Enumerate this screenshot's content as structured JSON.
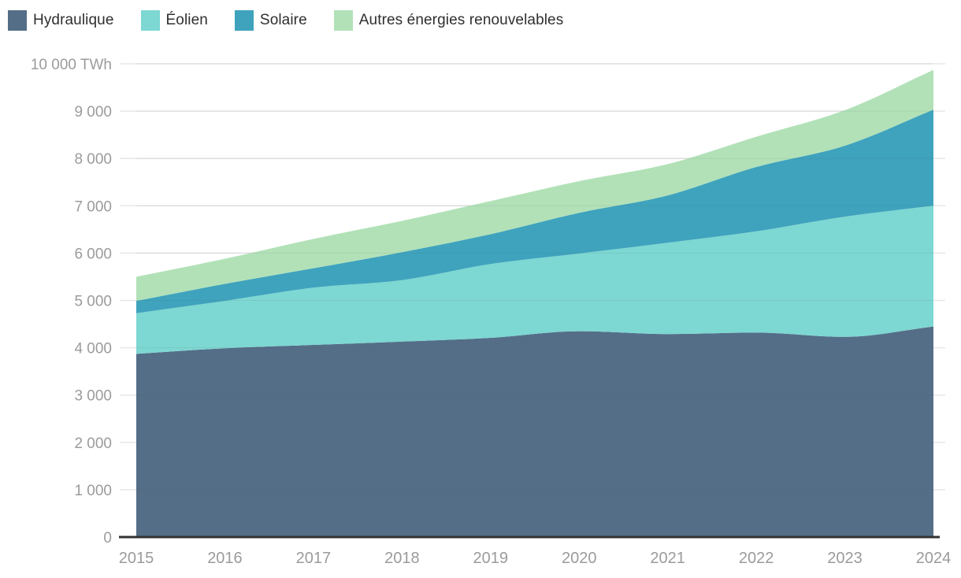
{
  "chart_data": {
    "type": "area",
    "stacked": true,
    "title": "",
    "unit": "TWh",
    "x": [
      2015,
      2016,
      2017,
      2018,
      2019,
      2020,
      2021,
      2022,
      2023,
      2024
    ],
    "x_labels": [
      "2015",
      "2016",
      "2017",
      "2018",
      "2019",
      "2020",
      "2021",
      "2022",
      "2023",
      "2024"
    ],
    "series": [
      {
        "name": "Hydraulique",
        "color": "#546E88",
        "values": [
          3870,
          3990,
          4060,
          4130,
          4210,
          4350,
          4290,
          4320,
          4230,
          4450
        ]
      },
      {
        "name": "Éolien",
        "color": "#7DD7D2",
        "values": [
          860,
          1000,
          1210,
          1300,
          1560,
          1640,
          1930,
          2140,
          2540,
          2550
        ]
      },
      {
        "name": "Solaire",
        "color": "#3FA3BD",
        "values": [
          260,
          360,
          410,
          590,
          630,
          860,
          1000,
          1360,
          1500,
          2030
        ]
      },
      {
        "name": "Autres énergies renouvelables",
        "color": "#B2E1B8",
        "values": [
          510,
          530,
          620,
          660,
          700,
          670,
          660,
          640,
          750,
          840
        ]
      }
    ],
    "ylim": [
      0,
      10000
    ],
    "ytick_step": 1000,
    "ytick_labels": [
      "0",
      "1 000",
      "2 000",
      "3 000",
      "4 000",
      "5 000",
      "6 000",
      "7 000",
      "8 000",
      "9 000",
      "10 000 TWh"
    ],
    "grid": "horizontal",
    "legend_position": "top-left",
    "colors": {
      "grid_line": "#e7e7e7",
      "grid_overlay": "rgba(90,90,90,0.10)",
      "axis_baseline": "#333333",
      "tick_text": "#9b9b9b",
      "legend_text": "#2f2f2f",
      "background": "#ffffff"
    }
  }
}
